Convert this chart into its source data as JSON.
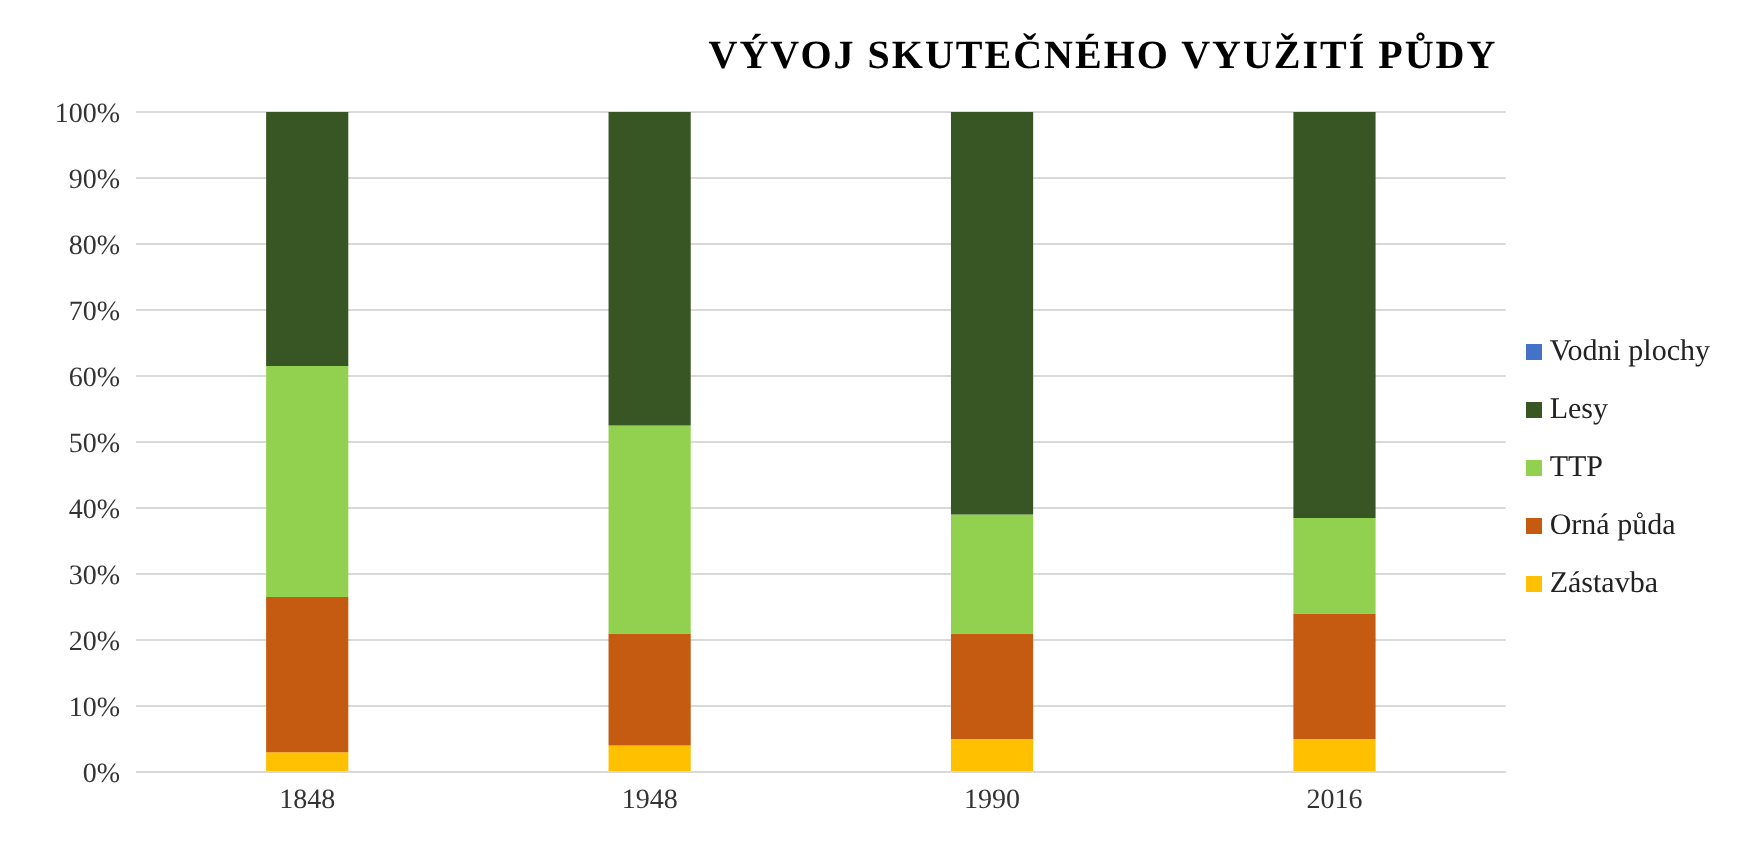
{
  "chart_data": {
    "type": "bar",
    "stacked": true,
    "title": "VÝVOJ SKUTEČNÉHO VYUŽITÍ PŮDY",
    "categories": [
      "1848",
      "1948",
      "1990",
      "2016"
    ],
    "series": [
      {
        "name": "Zástavba",
        "color": "#ffc000",
        "values": [
          3,
          4,
          5,
          5
        ]
      },
      {
        "name": "Orná půda",
        "color": "#c55a11",
        "values": [
          23.5,
          17,
          16,
          19
        ]
      },
      {
        "name": "TTP",
        "color": "#92d050",
        "values": [
          35,
          31.5,
          18,
          14.5
        ]
      },
      {
        "name": "Lesy",
        "color": "#375623",
        "values": [
          38.5,
          47.5,
          61,
          61.5
        ]
      },
      {
        "name": "Vodni plochy",
        "color": "#4472c4",
        "values": [
          0,
          0,
          0,
          0
        ]
      }
    ],
    "ylim": [
      0,
      100
    ],
    "yticks": [
      {
        "value": 0,
        "label": "0%"
      },
      {
        "value": 10,
        "label": "10%"
      },
      {
        "value": 20,
        "label": "20%"
      },
      {
        "value": 30,
        "label": "30%"
      },
      {
        "value": 40,
        "label": "40%"
      },
      {
        "value": 50,
        "label": "50%"
      },
      {
        "value": 60,
        "label": "60%"
      },
      {
        "value": 70,
        "label": "70%"
      },
      {
        "value": 80,
        "label": "80%"
      },
      {
        "value": 90,
        "label": "90%"
      },
      {
        "value": 100,
        "label": "100%"
      }
    ],
    "grid": "y",
    "legend": "right"
  }
}
